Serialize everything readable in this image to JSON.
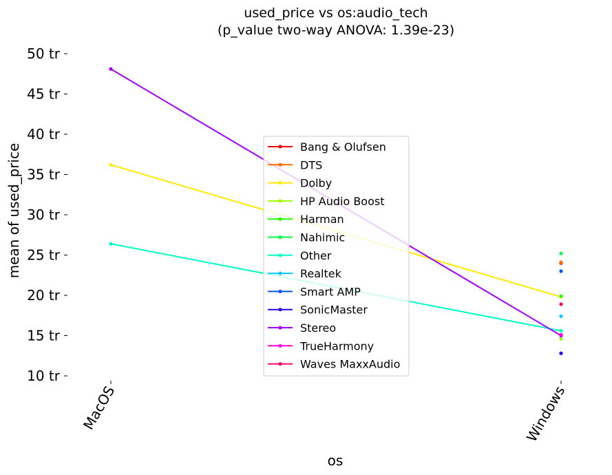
{
  "chart_data": {
    "type": "line",
    "title": "used_price vs os:audio_tech",
    "subtitle": "(p_value two-way ANOVA: 1.39e-23)",
    "xlabel": "os",
    "ylabel": "mean of used_price",
    "categories": [
      "MacOS",
      "Windows"
    ],
    "ylim": [
      10,
      50
    ],
    "yticks": [
      {
        "value": 10,
        "label": "10 tr"
      },
      {
        "value": 15,
        "label": "15 tr"
      },
      {
        "value": 20,
        "label": "20 tr"
      },
      {
        "value": 25,
        "label": "25 tr"
      },
      {
        "value": 30,
        "label": "30 tr"
      },
      {
        "value": 35,
        "label": "35 tr"
      },
      {
        "value": 40,
        "label": "40 tr"
      },
      {
        "value": 45,
        "label": "45 tr"
      },
      {
        "value": 50,
        "label": "50 tr"
      }
    ],
    "grid": false,
    "legend_position": "center",
    "series": [
      {
        "name": "Bang & Olufsen",
        "color": "#ff0000",
        "values": [
          null,
          24.0
        ]
      },
      {
        "name": "DTS",
        "color": "#ff6a00",
        "values": [
          null,
          24.1
        ]
      },
      {
        "name": "Dolby",
        "color": "#ffea00",
        "values": [
          36.2,
          19.8
        ]
      },
      {
        "name": "HP Audio Boost",
        "color": "#9dff00",
        "values": [
          null,
          14.6
        ]
      },
      {
        "name": "Harman",
        "color": "#22ff00",
        "values": [
          null,
          19.9
        ]
      },
      {
        "name": "Nahimic",
        "color": "#00ff48",
        "values": [
          null,
          25.2
        ]
      },
      {
        "name": "Other",
        "color": "#00ffc4",
        "values": [
          26.4,
          15.6
        ]
      },
      {
        "name": "Realtek",
        "color": "#00c8ff",
        "values": [
          null,
          17.4
        ]
      },
      {
        "name": "Smart AMP",
        "color": "#0055ff",
        "values": [
          null,
          23.0
        ]
      },
      {
        "name": "SonicMaster",
        "color": "#2600ff",
        "values": [
          null,
          12.8
        ]
      },
      {
        "name": "Stereo",
        "color": "#a300ff",
        "values": [
          48.1,
          15.0
        ]
      },
      {
        "name": "TrueHarmony",
        "color": "#ff00e1",
        "values": [
          null,
          15.1
        ]
      },
      {
        "name": "Waves MaxxAudio",
        "color": "#ff0066",
        "values": [
          null,
          18.9
        ]
      }
    ]
  }
}
